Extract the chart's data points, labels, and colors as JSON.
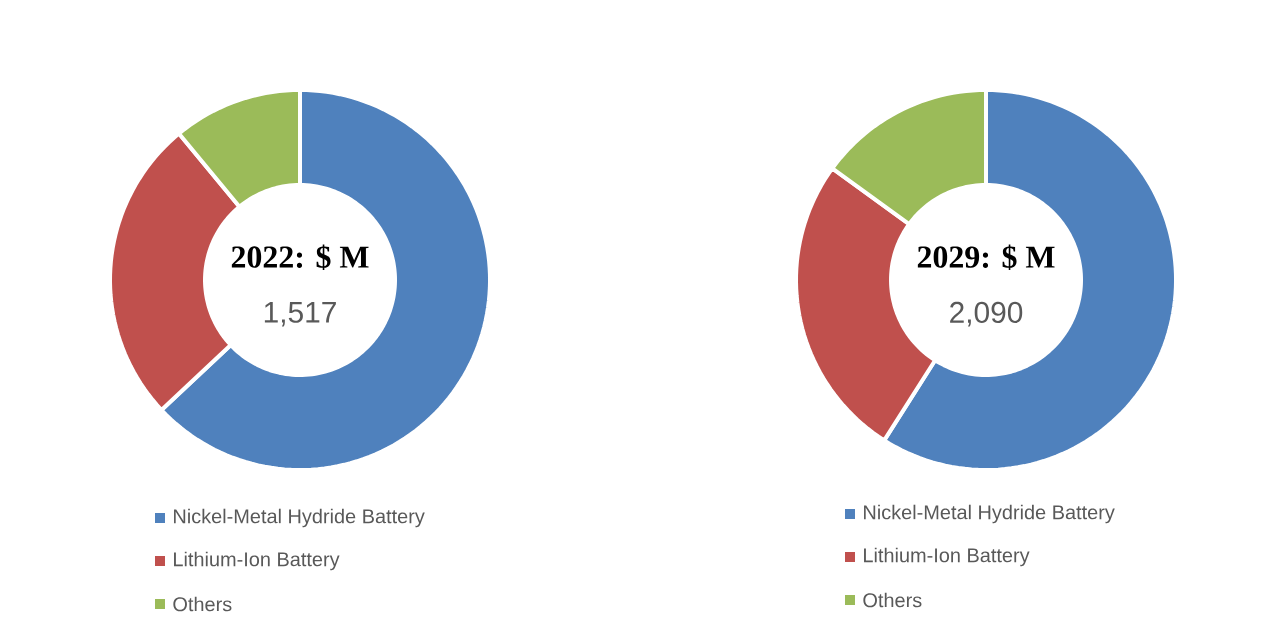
{
  "chart_data": [
    {
      "type": "donut",
      "title": "2022: $ M",
      "annotations": [
        "1,517"
      ],
      "categories": [
        "Nickel-Metal Hydride Battery",
        "Lithium-Ion Battery",
        "Others"
      ],
      "values": [
        63,
        26,
        11
      ],
      "colors": [
        "#4f81bd",
        "#c0504d",
        "#9bbb59"
      ],
      "legend": "bottom"
    },
    {
      "type": "donut",
      "title": "2029: $ M",
      "annotations": [
        "2,090"
      ],
      "categories": [
        "Nickel-Metal Hydride Battery",
        "Lithium-Ion Battery",
        "Others"
      ],
      "values": [
        59,
        26,
        15
      ],
      "colors": [
        "#4f81bd",
        "#c0504d",
        "#9bbb59"
      ],
      "legend": "bottom"
    }
  ]
}
